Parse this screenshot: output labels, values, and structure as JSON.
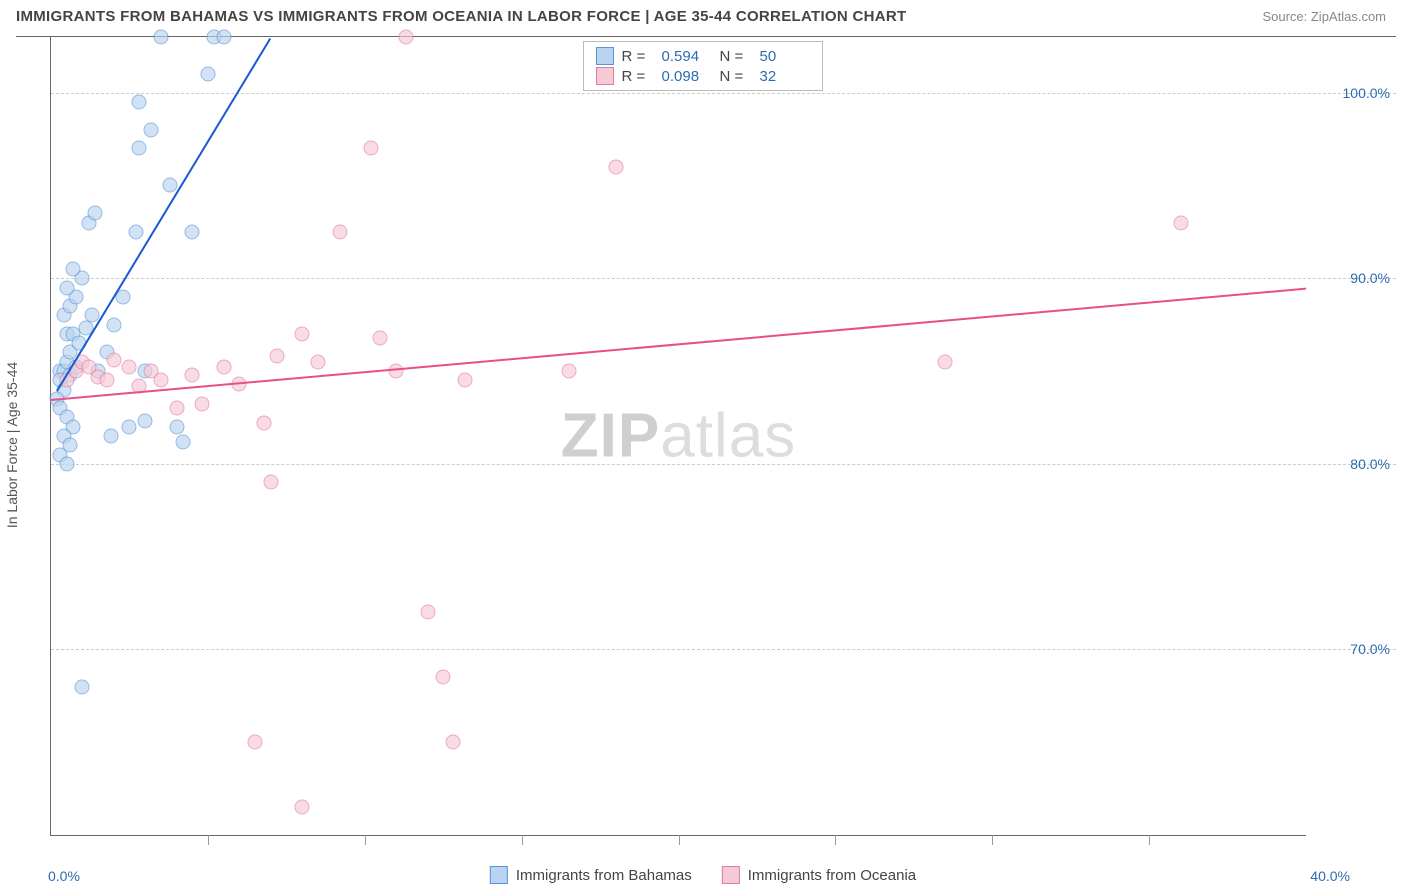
{
  "title": "IMMIGRANTS FROM BAHAMAS VS IMMIGRANTS FROM OCEANIA IN LABOR FORCE | AGE 35-44 CORRELATION CHART",
  "source": "Source: ZipAtlas.com",
  "ylabel": "In Labor Force | Age 35-44",
  "watermark_a": "ZIP",
  "watermark_b": "atlas",
  "chart": {
    "type": "scatter",
    "xlim": [
      0,
      40
    ],
    "ylim": [
      60,
      103
    ],
    "x_ticks": [
      0,
      5,
      10,
      15,
      20,
      25,
      30,
      35,
      40
    ],
    "x_tick_labels": {
      "0": "0.0%",
      "40": "40.0%"
    },
    "y_ticks": [
      70,
      80,
      90,
      100
    ],
    "y_tick_labels": {
      "70": "70.0%",
      "80": "80.0%",
      "90": "90.0%",
      "100": "100.0%"
    },
    "background_color": "#ffffff",
    "grid_color": "#cccccc",
    "tick_label_color": "#2b6cb0",
    "marker_size": 15,
    "marker_opacity": 0.65,
    "series": [
      {
        "name": "Immigrants from Bahamas",
        "color_fill": "#b9d4f0",
        "color_stroke": "#5a94d6",
        "trend_color": "#1958d6",
        "R": "0.594",
        "N": "50",
        "trend": {
          "x1": 0.2,
          "y1": 84.0,
          "x2": 7.0,
          "y2": 103.0
        },
        "points": [
          [
            0.3,
            85
          ],
          [
            0.4,
            85
          ],
          [
            0.5,
            85.5
          ],
          [
            0.6,
            86
          ],
          [
            0.5,
            87
          ],
          [
            0.7,
            87
          ],
          [
            0.4,
            88
          ],
          [
            0.6,
            88.5
          ],
          [
            0.8,
            89
          ],
          [
            0.5,
            89.5
          ],
          [
            1.0,
            90
          ],
          [
            0.7,
            90.5
          ],
          [
            0.3,
            84.5
          ],
          [
            0.4,
            84
          ],
          [
            0.6,
            84.8
          ],
          [
            0.8,
            85.2
          ],
          [
            0.9,
            86.5
          ],
          [
            1.1,
            87.3
          ],
          [
            1.3,
            88.0
          ],
          [
            0.2,
            83.5
          ],
          [
            0.3,
            83
          ],
          [
            0.5,
            82.5
          ],
          [
            0.7,
            82
          ],
          [
            0.4,
            81.5
          ],
          [
            0.6,
            81
          ],
          [
            0.3,
            80.5
          ],
          [
            0.5,
            80
          ],
          [
            1.5,
            85
          ],
          [
            1.8,
            86
          ],
          [
            2.0,
            87.5
          ],
          [
            2.3,
            89
          ],
          [
            2.5,
            82
          ],
          [
            2.7,
            92.5
          ],
          [
            3.0,
            85.0
          ],
          [
            3.2,
            98
          ],
          [
            3.8,
            95
          ],
          [
            4.0,
            82
          ],
          [
            4.5,
            92.5
          ],
          [
            5.0,
            101
          ],
          [
            5.2,
            103
          ],
          [
            5.5,
            103
          ],
          [
            2.8,
            99.5
          ],
          [
            1.2,
            93
          ],
          [
            1.4,
            93.5
          ],
          [
            1.9,
            81.5
          ],
          [
            2.8,
            97
          ],
          [
            3.0,
            82.3
          ],
          [
            3.5,
            103
          ],
          [
            1.0,
            68
          ],
          [
            4.2,
            81.2
          ]
        ]
      },
      {
        "name": "Immigrants from Oceania",
        "color_fill": "#f6c9d6",
        "color_stroke": "#e57aa0",
        "trend_color": "#e94e8a",
        "R": "0.098",
        "N": "32",
        "trend": {
          "x1": 0.0,
          "y1": 83.5,
          "x2": 40.0,
          "y2": 89.5
        },
        "points": [
          [
            0.5,
            84.5
          ],
          [
            0.8,
            85
          ],
          [
            1.0,
            85.5
          ],
          [
            1.2,
            85.2
          ],
          [
            1.5,
            84.7
          ],
          [
            1.8,
            84.5
          ],
          [
            2.0,
            85.6
          ],
          [
            2.5,
            85.2
          ],
          [
            2.8,
            84.2
          ],
          [
            3.2,
            85.0
          ],
          [
            3.5,
            84.5
          ],
          [
            4.0,
            83.0
          ],
          [
            4.5,
            84.8
          ],
          [
            4.8,
            83.2
          ],
          [
            5.5,
            85.2
          ],
          [
            6.0,
            84.3
          ],
          [
            6.8,
            82.2
          ],
          [
            7.2,
            85.8
          ],
          [
            8.0,
            87.0
          ],
          [
            8.5,
            85.5
          ],
          [
            9.2,
            92.5
          ],
          [
            10.5,
            86.8
          ],
          [
            10.2,
            97
          ],
          [
            11.0,
            85.0
          ],
          [
            11.3,
            103
          ],
          [
            13.2,
            84.5
          ],
          [
            16.5,
            85.0
          ],
          [
            18.0,
            96
          ],
          [
            28.5,
            85.5
          ],
          [
            36.0,
            93
          ],
          [
            6.5,
            65.0
          ],
          [
            8.0,
            61.5
          ]
        ]
      }
    ],
    "extra_pink": [
      [
        7.0,
        79
      ],
      [
        12.0,
        72.0
      ],
      [
        12.5,
        68.5
      ],
      [
        12.8,
        65.0
      ]
    ]
  },
  "legend_bottom": [
    {
      "label": "Immigrants from Bahamas",
      "fill": "#b9d4f0",
      "stroke": "#5a94d6"
    },
    {
      "label": "Immigrants from Oceania",
      "fill": "#f6c9d6",
      "stroke": "#e57aa0"
    }
  ]
}
